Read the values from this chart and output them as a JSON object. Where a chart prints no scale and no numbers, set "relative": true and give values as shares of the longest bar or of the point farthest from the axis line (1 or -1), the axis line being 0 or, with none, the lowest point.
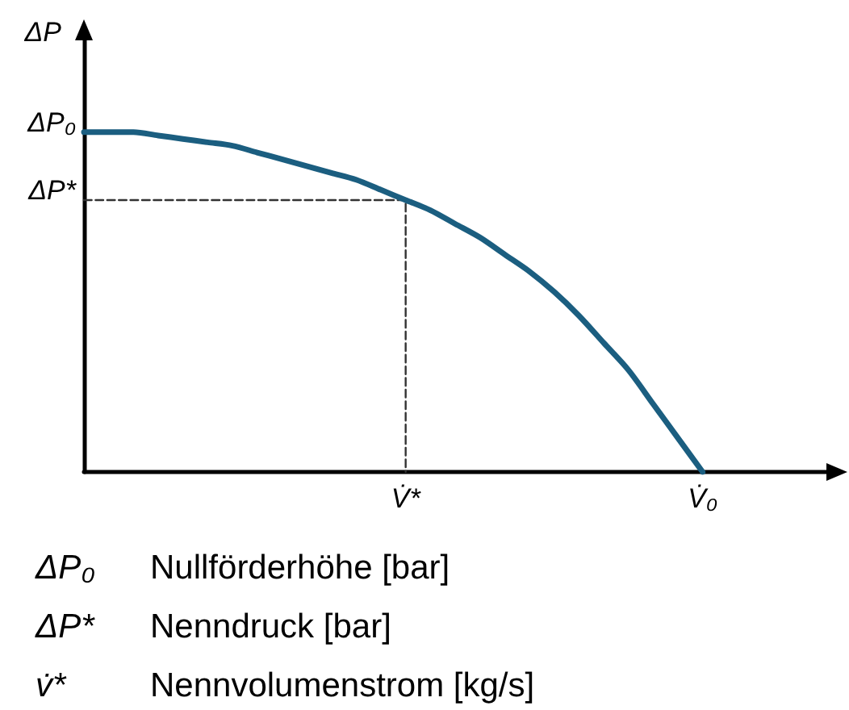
{
  "chart_data": {
    "type": "line",
    "relative": true,
    "ylabel": "ΔP",
    "line_style": "solid",
    "ylim": [
      0,
      1.27
    ],
    "categories": [
      null,
      null,
      null,
      null,
      null,
      null,
      null,
      null,
      null,
      null,
      null,
      null,
      null,
      "V̇*",
      null,
      null,
      null,
      null,
      null,
      null,
      null,
      null,
      null,
      null,
      null,
      "V̇₀",
      null,
      null,
      null,
      null,
      null
    ],
    "series": [
      {
        "color": "#1b5e80",
        "values": [
          1,
          1,
          1,
          0.99,
          0.98,
          0.97,
          0.96,
          0.94,
          0.92,
          0.9,
          0.88,
          0.86,
          0.83,
          0.8,
          0.77,
          0.73,
          0.69,
          0.64,
          0.59,
          0.53,
          0.46,
          0.38,
          0.3,
          0.2,
          0.1,
          0,
          null,
          null,
          null,
          null,
          null
        ]
      },
      {
        "type": "step",
        "color": "#333333",
        "line_style": "dashed",
        "values": [
          0.8,
          0.8,
          0.8,
          0.8,
          0.8,
          0.8,
          0.8,
          0.8,
          0.8,
          0.8,
          0.8,
          0.8,
          0.8,
          0,
          null,
          null,
          null,
          null,
          null,
          null,
          null,
          null,
          null,
          null,
          null,
          null,
          null,
          null,
          null,
          null,
          null
        ]
      }
    ],
    "annotations": [
      "ΔP₀",
      "ΔP*",
      "ΔP₀ Nullförderhöhe [bar]",
      "ΔP* Nenndruck [bar]",
      "v̇* Nennvolumenstrom [kg/s]"
    ]
  }
}
